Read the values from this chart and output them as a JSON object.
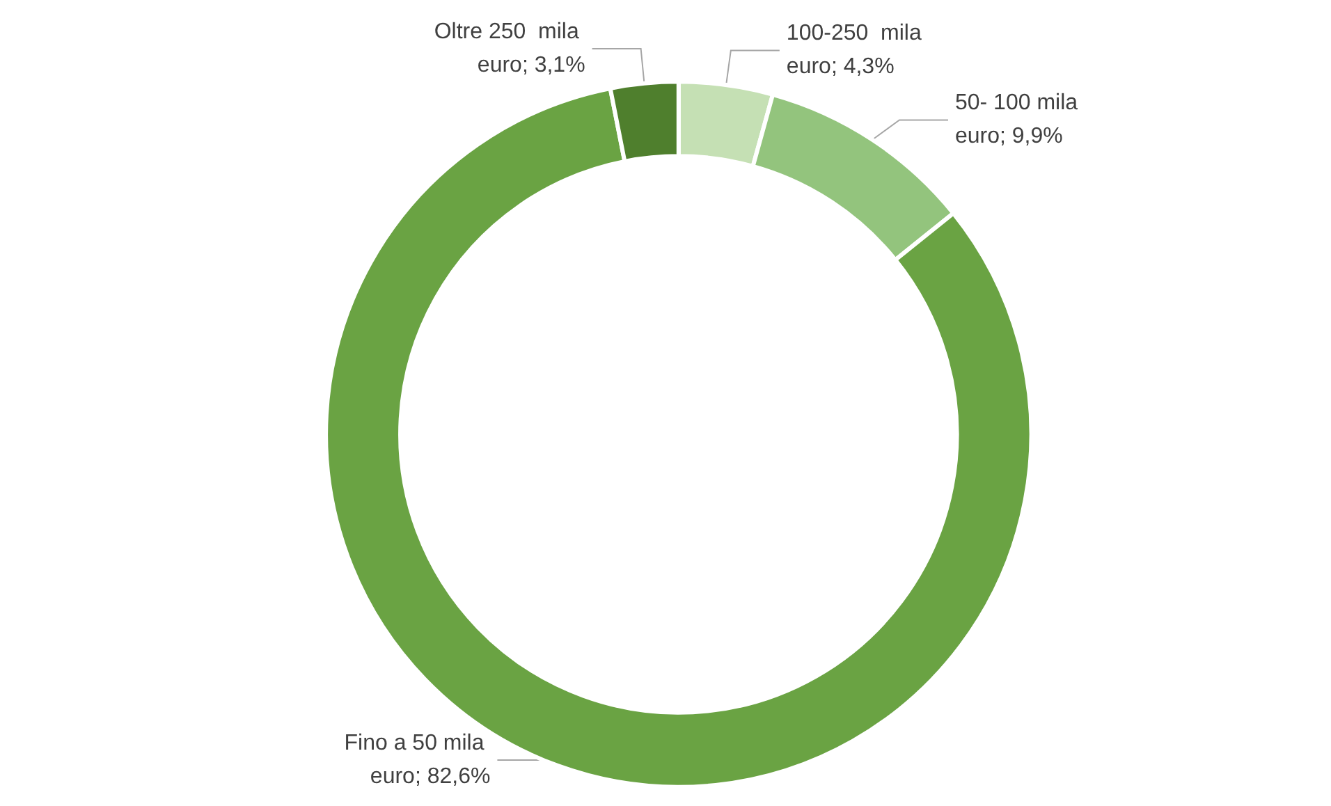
{
  "chart_data": {
    "type": "donut",
    "categories": [
      "100-250  mila euro",
      "50- 100 mila euro",
      "Fino a 50 mila euro",
      "Oltre 250  mila euro"
    ],
    "values": [
      4.3,
      9.9,
      82.6,
      3.1
    ],
    "value_labels": [
      "4,3%",
      "9,9%",
      "82,6%",
      "3,1%"
    ],
    "colors": [
      "#c5e0b4",
      "#93c47d",
      "#6aa343",
      "#4f7f2d"
    ],
    "legend": false
  }
}
